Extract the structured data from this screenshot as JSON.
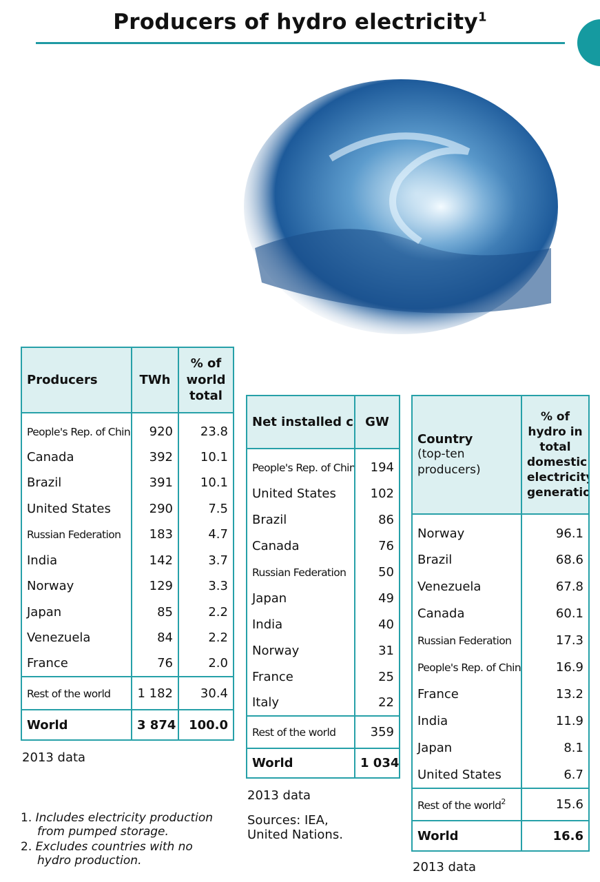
{
  "header": {
    "title": "Producers of hydro electricity",
    "title_note": "1"
  },
  "tables": [
    {
      "columns": [
        "Producers",
        "TWh",
        "% of world total"
      ],
      "rows": [
        [
          "People's Rep. of China",
          "920",
          "23.8"
        ],
        [
          "Canada",
          "392",
          "10.1"
        ],
        [
          "Brazil",
          "391",
          "10.1"
        ],
        [
          "United States",
          "290",
          "7.5"
        ],
        [
          "Russian Federation",
          "183",
          "4.7"
        ],
        [
          "India",
          "142",
          "3.7"
        ],
        [
          "Norway",
          "129",
          "3.3"
        ],
        [
          "Japan",
          "85",
          "2.2"
        ],
        [
          "Venezuela",
          "84",
          "2.2"
        ],
        [
          "France",
          "76",
          "2.0"
        ]
      ],
      "rest": [
        "Rest of the world",
        "1 182",
        "30.4"
      ],
      "total": [
        "World",
        "3 874",
        "100.0"
      ],
      "data_year": "2013 data"
    },
    {
      "columns": [
        "Net installed capacity",
        "GW"
      ],
      "rows": [
        [
          "People's Rep. of China",
          "194"
        ],
        [
          "United States",
          "102"
        ],
        [
          "Brazil",
          "86"
        ],
        [
          "Canada",
          "76"
        ],
        [
          "Russian Federation",
          "50"
        ],
        [
          "Japan",
          "49"
        ],
        [
          "India",
          "40"
        ],
        [
          "Norway",
          "31"
        ],
        [
          "France",
          "25"
        ],
        [
          "Italy",
          "22"
        ]
      ],
      "rest": [
        "Rest of the world",
        "359"
      ],
      "total": [
        "World",
        "1 034"
      ],
      "data_year": "2013 data",
      "sources": "Sources: IEA, United Nations."
    },
    {
      "columns": [
        "Country",
        "% of hydro in total domestic electricity generation"
      ],
      "header_note": "(top-ten producers)",
      "rows": [
        [
          "Norway",
          "96.1"
        ],
        [
          "Brazil",
          "68.6"
        ],
        [
          "Venezuela",
          "67.8"
        ],
        [
          "Canada",
          "60.1"
        ],
        [
          "Russian Federation",
          "17.3"
        ],
        [
          "People's Rep. of China",
          "16.9"
        ],
        [
          "France",
          "13.2"
        ],
        [
          "India",
          "11.9"
        ],
        [
          "Japan",
          "8.1"
        ],
        [
          "United States",
          "6.7"
        ]
      ],
      "rest": [
        "Rest of the world",
        "15.6"
      ],
      "rest_note": "2",
      "total": [
        "World",
        "16.6"
      ],
      "data_year": "2013 data"
    }
  ],
  "footnotes": [
    {
      "number": "1.",
      "text": "Includes electricity production from pumped storage."
    },
    {
      "number": "2.",
      "text": "Excludes countries with no hydro production."
    }
  ]
}
